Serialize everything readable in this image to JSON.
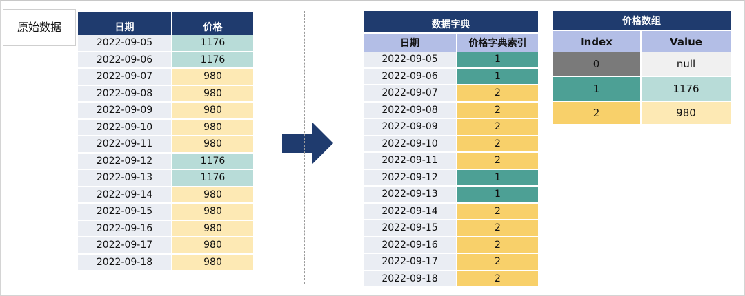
{
  "caption": "原始数据",
  "original_table": {
    "headers": [
      "日期",
      "价格"
    ],
    "rows": [
      {
        "date": "2022-09-05",
        "price": "1176"
      },
      {
        "date": "2022-09-06",
        "price": "1176"
      },
      {
        "date": "2022-09-07",
        "price": "980"
      },
      {
        "date": "2022-09-08",
        "price": "980"
      },
      {
        "date": "2022-09-09",
        "price": "980"
      },
      {
        "date": "2022-09-10",
        "price": "980"
      },
      {
        "date": "2022-09-11",
        "price": "980"
      },
      {
        "date": "2022-09-12",
        "price": "1176"
      },
      {
        "date": "2022-09-13",
        "price": "1176"
      },
      {
        "date": "2022-09-14",
        "price": "980"
      },
      {
        "date": "2022-09-15",
        "price": "980"
      },
      {
        "date": "2022-09-16",
        "price": "980"
      },
      {
        "date": "2022-09-17",
        "price": "980"
      },
      {
        "date": "2022-09-18",
        "price": "980"
      }
    ]
  },
  "dict_table": {
    "title": "数据字典",
    "headers": [
      "日期",
      "价格字典索引"
    ],
    "rows": [
      {
        "date": "2022-09-05",
        "index": "1"
      },
      {
        "date": "2022-09-06",
        "index": "1"
      },
      {
        "date": "2022-09-07",
        "index": "2"
      },
      {
        "date": "2022-09-08",
        "index": "2"
      },
      {
        "date": "2022-09-09",
        "index": "2"
      },
      {
        "date": "2022-09-10",
        "index": "2"
      },
      {
        "date": "2022-09-11",
        "index": "2"
      },
      {
        "date": "2022-09-12",
        "index": "1"
      },
      {
        "date": "2022-09-13",
        "index": "1"
      },
      {
        "date": "2022-09-14",
        "index": "2"
      },
      {
        "date": "2022-09-15",
        "index": "2"
      },
      {
        "date": "2022-09-16",
        "index": "2"
      },
      {
        "date": "2022-09-17",
        "index": "2"
      },
      {
        "date": "2022-09-18",
        "index": "2"
      }
    ]
  },
  "array_table": {
    "title": "价格数组",
    "headers": [
      "Index",
      "Value"
    ],
    "rows": [
      {
        "index": "0",
        "value": "null"
      },
      {
        "index": "1",
        "value": "1176"
      },
      {
        "index": "2",
        "value": "980"
      }
    ]
  },
  "colors": {
    "header_navy": "#1f3b6e",
    "subheader_lavender": "#b3bee6",
    "date_cell": "#eaedf3",
    "teal_light": "#b8dcd8",
    "yellow_light": "#fde9b4",
    "teal": "#4da095",
    "yellow": "#f8d06a",
    "gray": "#7a7a7a",
    "null_cell": "#f0f0f0",
    "arrow": "#1f3b6e"
  },
  "icons": {
    "arrow": "right-arrow-icon"
  }
}
